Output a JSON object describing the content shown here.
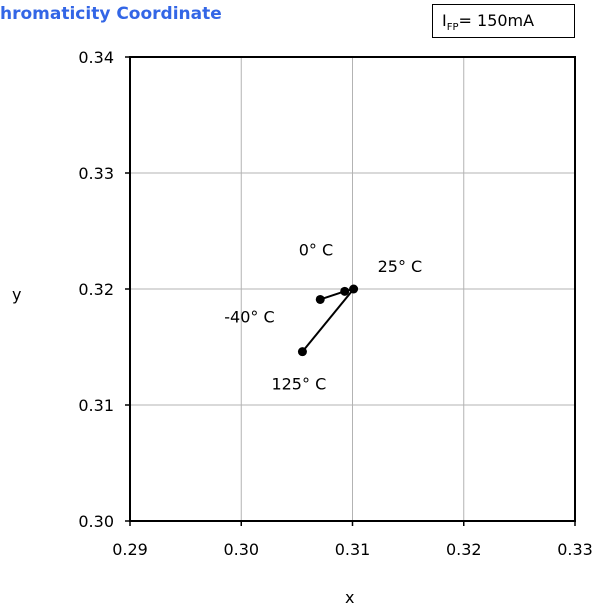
{
  "title": "hromaticity Coordinate",
  "condition": {
    "symbol": "I",
    "subscript": "FP",
    "value": "= 150mA"
  },
  "chart_data": {
    "type": "scatter",
    "title": "hromaticity Coordinate",
    "xlabel": "x",
    "ylabel": "y",
    "xlim": [
      0.29,
      0.33
    ],
    "ylim": [
      0.3,
      0.34
    ],
    "x_ticks": [
      "0.29",
      "0.30",
      "0.31",
      "0.32",
      "0.33"
    ],
    "y_ticks": [
      "0.30",
      "0.31",
      "0.32",
      "0.33",
      "0.34"
    ],
    "grid": true,
    "series": [
      {
        "points": [
          {
            "label": "-40° C",
            "x": 0.3071,
            "y": 0.3191
          },
          {
            "label": "0° C",
            "x": 0.3093,
            "y": 0.3198
          },
          {
            "label": "25° C",
            "x": 0.3101,
            "y": 0.32
          },
          {
            "label": "125° C",
            "x": 0.3055,
            "y": 0.3146
          }
        ],
        "connections": [
          [
            0,
            1
          ],
          [
            1,
            2
          ],
          [
            2,
            3
          ]
        ]
      }
    ]
  }
}
